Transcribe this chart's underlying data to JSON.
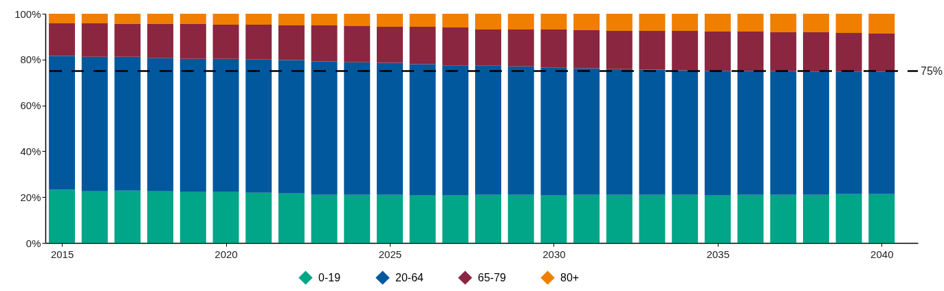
{
  "chart_data": {
    "type": "bar",
    "stacked": true,
    "x": [
      2015,
      2016,
      2017,
      2018,
      2019,
      2020,
      2021,
      2022,
      2023,
      2024,
      2025,
      2026,
      2027,
      2028,
      2029,
      2030,
      2031,
      2032,
      2033,
      2034,
      2035,
      2036,
      2037,
      2038,
      2039,
      2040
    ],
    "series": [
      {
        "name": "0-19",
        "color": "#00a687",
        "values": [
          23.2,
          22.5,
          22.8,
          22.5,
          22.2,
          22.2,
          21.9,
          21.6,
          21.0,
          21.0,
          21.0,
          20.7,
          20.7,
          21.0,
          21.0,
          20.7,
          21.0,
          21.0,
          21.0,
          21.0,
          20.7,
          21.0,
          21.0,
          21.0,
          21.3,
          21.3
        ]
      },
      {
        "name": "20-64",
        "color": "#02589d",
        "values": [
          58.4,
          58.7,
          58.4,
          58.1,
          58.1,
          58.1,
          58.1,
          58.2,
          58.2,
          57.8,
          57.6,
          57.3,
          56.8,
          56.3,
          56.0,
          55.7,
          55.2,
          54.8,
          54.6,
          54.3,
          54.4,
          54.1,
          53.9,
          53.6,
          53.3,
          53.3
        ]
      },
      {
        "name": "65-79",
        "color": "#8a2640",
        "values": [
          14.2,
          14.6,
          14.3,
          14.9,
          15.2,
          14.9,
          15.2,
          15.1,
          15.7,
          15.8,
          15.7,
          16.3,
          16.5,
          15.8,
          16.1,
          16.7,
          16.6,
          16.7,
          16.9,
          17.2,
          17.1,
          17.1,
          17.0,
          17.3,
          17.0,
          16.7
        ]
      },
      {
        "name": "80+",
        "color": "#f07f00",
        "values": [
          4.2,
          4.2,
          4.5,
          4.5,
          4.5,
          4.8,
          4.8,
          5.1,
          5.1,
          5.4,
          5.7,
          5.7,
          6.0,
          6.9,
          6.9,
          6.9,
          7.2,
          7.5,
          7.5,
          7.5,
          7.8,
          7.8,
          8.1,
          8.1,
          8.4,
          8.7
        ]
      }
    ],
    "xlim": [
      2014.6,
      2041
    ],
    "xticks": [
      2015,
      2020,
      2025,
      2030,
      2035,
      2040
    ],
    "ylim": [
      0,
      100
    ],
    "yticks": [
      {
        "value": 0,
        "label": "0%"
      },
      {
        "value": 20,
        "label": "20%"
      },
      {
        "value": 40,
        "label": "40%"
      },
      {
        "value": 60,
        "label": "60%"
      },
      {
        "value": 80,
        "label": "80%"
      },
      {
        "value": 100,
        "label": "100%"
      }
    ],
    "ref_lines": [
      {
        "axis": "y",
        "value": 75,
        "label": "75%",
        "color": "#000000",
        "line_style": "dashed"
      }
    ],
    "grid": false,
    "legend": "bottom"
  }
}
